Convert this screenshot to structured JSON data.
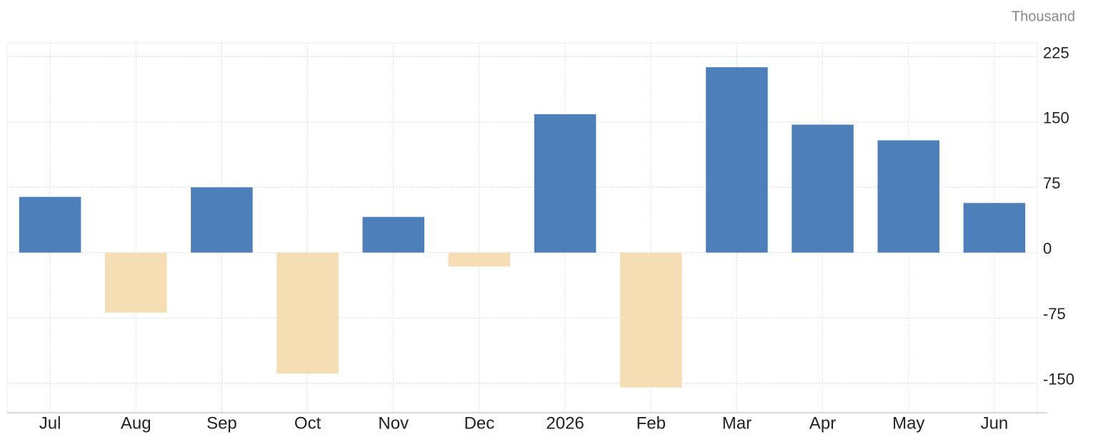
{
  "chart_data": {
    "type": "bar",
    "unit": "Thousand",
    "categories": [
      "Jul",
      "Aug",
      "Sep",
      "Oct",
      "Nov",
      "Dec",
      "2026",
      "Feb",
      "Mar",
      "Apr",
      "May",
      "Jun"
    ],
    "values": [
      64,
      -69,
      75,
      -139,
      41,
      -16,
      159,
      -155,
      213,
      147,
      129,
      57
    ],
    "positive_color": "#4d7fba",
    "negative_color": "#f5deb3",
    "ylim": [
      -184,
      241
    ],
    "yticks": [
      -150,
      -75,
      0,
      75,
      150,
      225
    ],
    "grid": true
  }
}
